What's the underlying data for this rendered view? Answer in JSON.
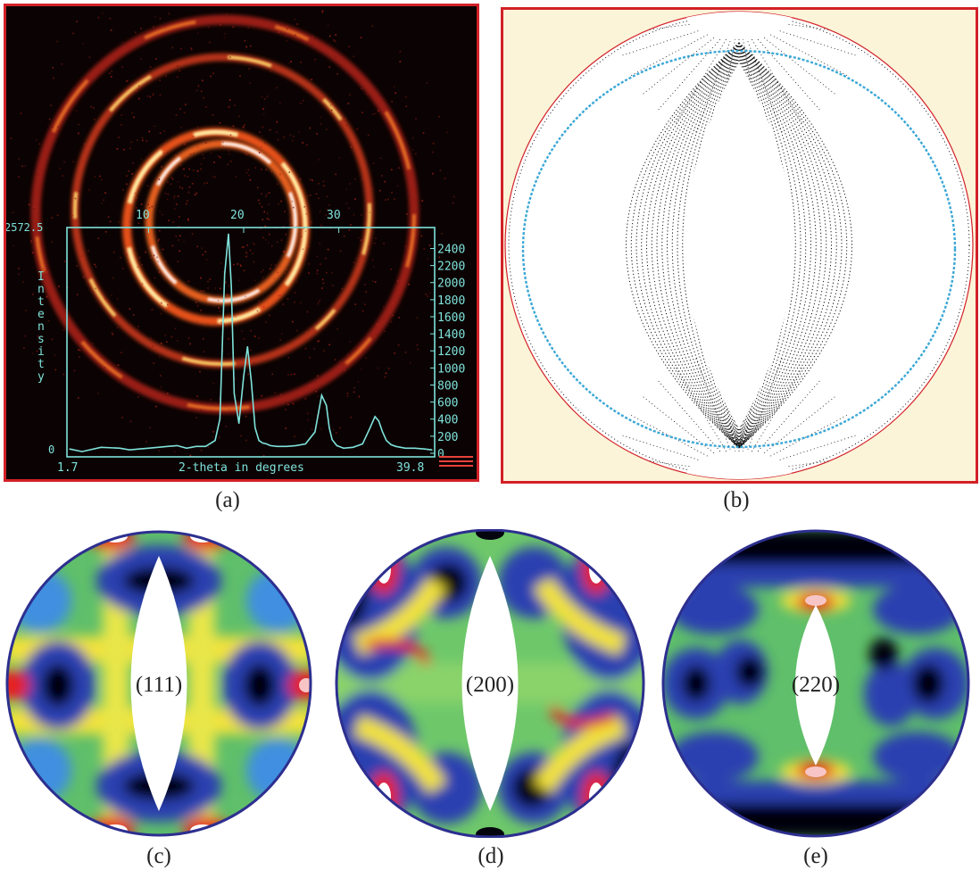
{
  "captions": {
    "a": "(a)",
    "b": "(b)",
    "c": "(c)",
    "d": "(d)",
    "e": "(e)"
  },
  "colors": {
    "frame": "#d32027",
    "panel_b_background": "#fbf4d8",
    "diffraction_background": "#0b0303",
    "trace": "#7fe3dc",
    "highlight_arc": "#3aa7d6",
    "pole_figure_border": "#2d2f8f"
  },
  "diffraction_plot": {
    "top_ticks": [
      "10",
      "20",
      "30"
    ],
    "left_top_label": "2572.5",
    "left_bottom_label": "0",
    "ylabel": "Intensity",
    "xlabel": "2-theta in degrees",
    "x_min_label": "1.7",
    "x_max_label": "39.8"
  },
  "chart_data": {
    "type": "line",
    "xlabel": "2-theta in degrees",
    "ylabel": "Intensity",
    "xlim": [
      1.7,
      39.8
    ],
    "ylim": [
      0,
      2572.5
    ],
    "yticks": [
      0,
      200,
      400,
      600,
      800,
      1000,
      1200,
      1400,
      1600,
      1800,
      2000,
      2200,
      2400
    ],
    "x": [
      1.7,
      3,
      5,
      7,
      8,
      9,
      10,
      11,
      12,
      13,
      14,
      15,
      16,
      17,
      17.5,
      18,
      18.4,
      18.7,
      19,
      19.5,
      20,
      20.4,
      20.8,
      21.2,
      21.6,
      22,
      22.4,
      22.8,
      23.5,
      24.5,
      25.5,
      26.5,
      27.5,
      28.2,
      28.7,
      29,
      29.3,
      29.8,
      30.5,
      31.5,
      32.5,
      33.3,
      33.8,
      34.2,
      34.6,
      35,
      35.5,
      36,
      37,
      38,
      39,
      39.8
    ],
    "y": [
      50,
      20,
      70,
      60,
      40,
      50,
      60,
      70,
      80,
      90,
      60,
      80,
      80,
      150,
      400,
      2100,
      2570,
      1950,
      700,
      350,
      900,
      1250,
      850,
      300,
      150,
      120,
      110,
      90,
      80,
      80,
      90,
      110,
      250,
      680,
      560,
      300,
      160,
      90,
      60,
      70,
      110,
      300,
      430,
      380,
      250,
      150,
      100,
      80,
      60,
      60,
      50,
      40
    ]
  },
  "pole_figures": {
    "c": {
      "label": "(111)"
    },
    "d": {
      "label": "(200)"
    },
    "e": {
      "label": "(220)"
    }
  }
}
